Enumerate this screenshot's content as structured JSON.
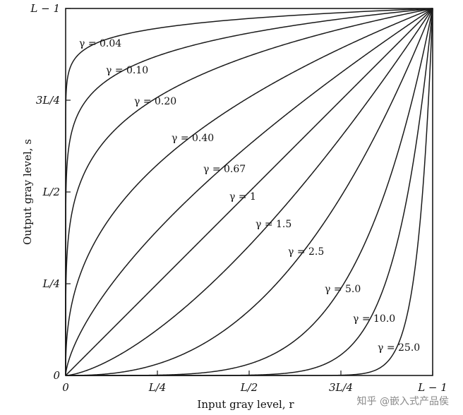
{
  "chart_data": {
    "type": "line",
    "title": "",
    "xlabel": "Input gray level, r",
    "ylabel": "Output gray level, s",
    "xlim": [
      0,
      1
    ],
    "ylim": [
      0,
      1
    ],
    "x_ticks": [
      {
        "value": 0,
        "label": "0"
      },
      {
        "value": 0.25,
        "label": "L/4"
      },
      {
        "value": 0.5,
        "label": "L/2"
      },
      {
        "value": 0.75,
        "label": "3L/4"
      },
      {
        "value": 1,
        "label": "L − 1"
      }
    ],
    "y_ticks": [
      {
        "value": 0,
        "label": "0"
      },
      {
        "value": 0.25,
        "label": "L/4"
      },
      {
        "value": 0.5,
        "label": "L/2"
      },
      {
        "value": 0.75,
        "label": "3L/4"
      },
      {
        "value": 1,
        "label": "L − 1"
      }
    ],
    "grid": false,
    "function": "s = c·r^γ",
    "series": [
      {
        "name": "γ = 0.04",
        "gamma": 0.04
      },
      {
        "name": "γ = 0.10",
        "gamma": 0.1
      },
      {
        "name": "γ = 0.20",
        "gamma": 0.2
      },
      {
        "name": "γ = 0.40",
        "gamma": 0.4
      },
      {
        "name": "γ = 0.67",
        "gamma": 0.67
      },
      {
        "name": "γ = 1",
        "gamma": 1
      },
      {
        "name": "γ = 1.5",
        "gamma": 1.5
      },
      {
        "name": "γ = 2.5",
        "gamma": 2.5
      },
      {
        "name": "γ = 5.0",
        "gamma": 5.0
      },
      {
        "name": "γ = 10.0",
        "gamma": 10.0
      },
      {
        "name": "γ = 25.0",
        "gamma": 25.0
      }
    ],
    "colors": {
      "curve": "#1a1a1a",
      "axis": "#1a1a1a",
      "text": "#111111"
    }
  },
  "watermark": "知乎 @嵌入式产品侯"
}
